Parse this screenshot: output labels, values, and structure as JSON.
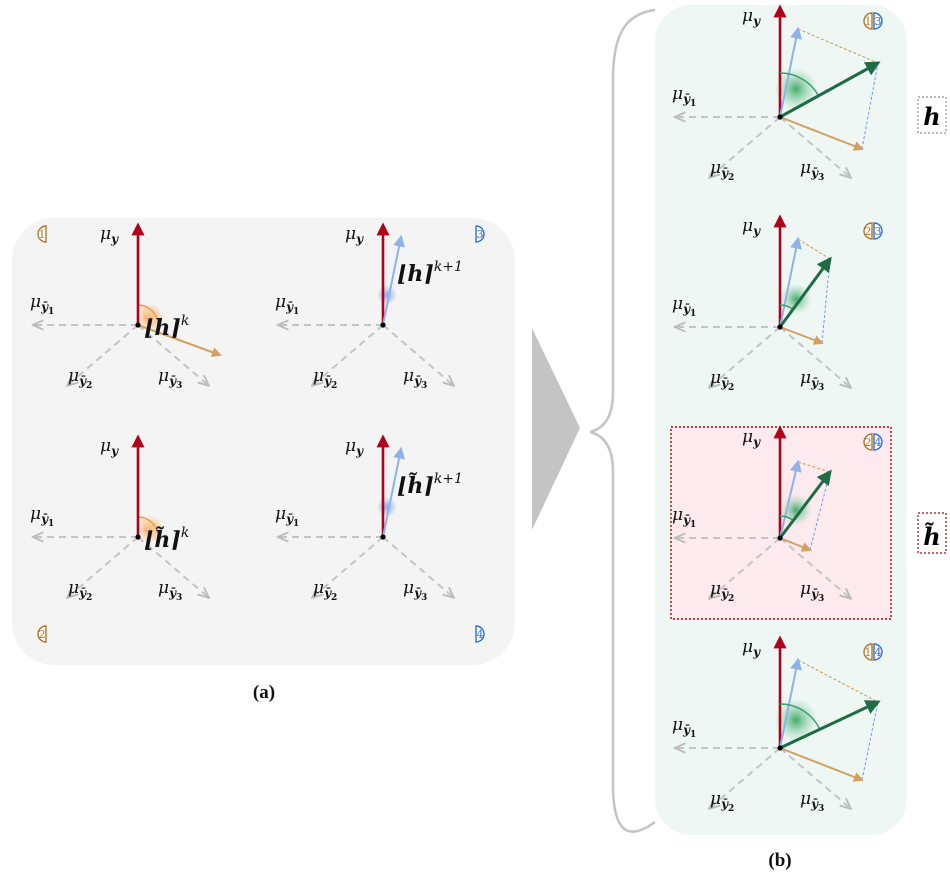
{
  "captions": {
    "a": "(a)",
    "b": "(b)"
  },
  "axis_labels": {
    "y": {
      "mu": "μ",
      "sub": "y"
    },
    "y1": {
      "mu": "μ",
      "sub": "ȳ",
      "idx": "1"
    },
    "y2": {
      "mu": "μ",
      "sub": "ȳ",
      "idx": "2"
    },
    "y3": {
      "mu": "μ",
      "sub": "ȳ",
      "idx": "3"
    }
  },
  "panel_a": {
    "cells": [
      {
        "badge": "1",
        "label": "⌊h⌉",
        "sup": "k"
      },
      {
        "badge": "3",
        "label": "⌊h⌉",
        "sup": "k+1"
      },
      {
        "badge": "2",
        "label": "⌊h̃⌉",
        "sup": "k"
      },
      {
        "badge": "4",
        "label": "⌊h̃⌉",
        "sup": "k+1"
      }
    ]
  },
  "panel_b": {
    "rows": [
      {
        "badges": [
          "1",
          "3"
        ]
      },
      {
        "badges": [
          "2",
          "3"
        ]
      },
      {
        "badges": [
          "2",
          "4"
        ]
      },
      {
        "badges": [
          "1",
          "4"
        ]
      }
    ]
  },
  "side_labels": {
    "h": "h",
    "h_tilde": "h̃"
  },
  "colors": {
    "red_axis": "#b0001a",
    "orange": "#d4a060",
    "blue": "#8fb3e6",
    "green": "#1e6b45",
    "gray": "#c4c4c4",
    "badge_orange": "#b8742a",
    "badge_blue": "#2f6fd6"
  }
}
